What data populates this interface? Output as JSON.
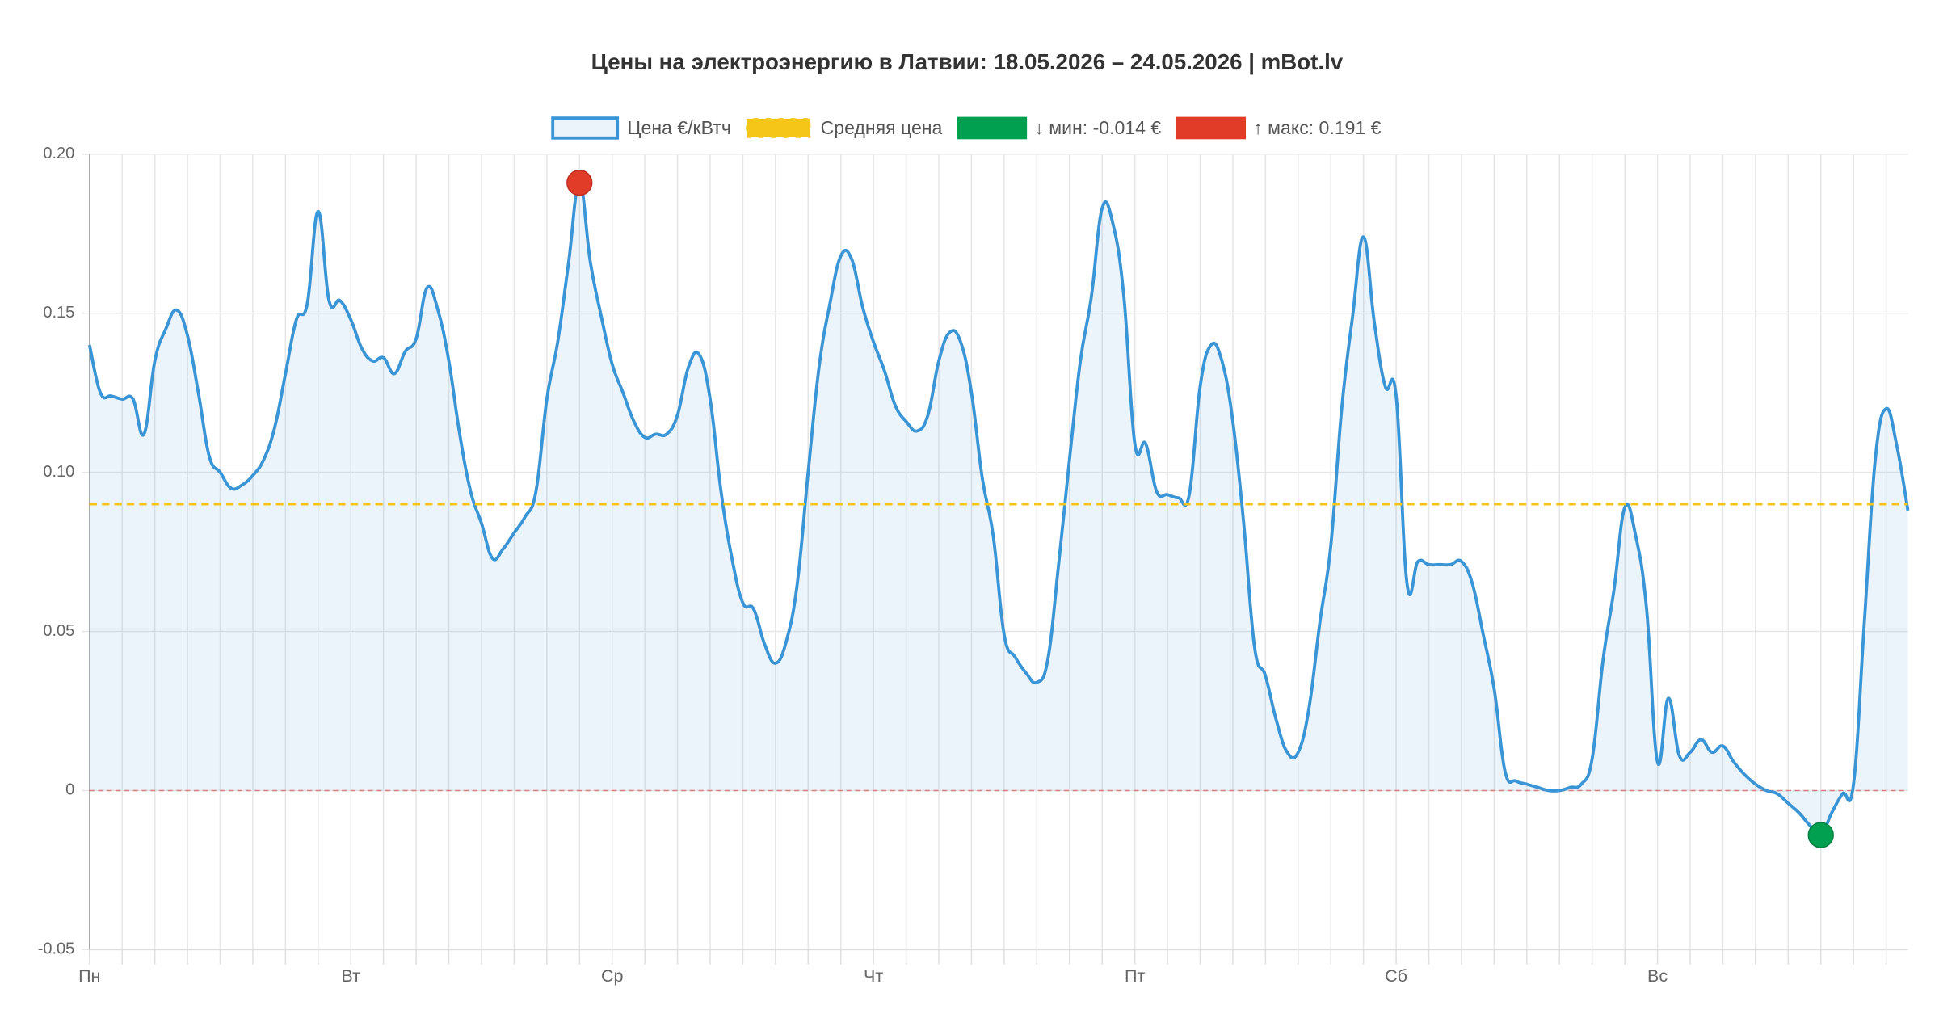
{
  "chart_data": {
    "type": "line",
    "title": "Цены на электроэнергию в Латвии: 18.05.2026 – 24.05.2026 | mBot.lv",
    "categories": [
      "Пн",
      null,
      null,
      null,
      null,
      null,
      null,
      null,
      null,
      null,
      null,
      null,
      null,
      null,
      null,
      null,
      null,
      null,
      null,
      null,
      null,
      null,
      null,
      null,
      "Вт",
      null,
      null,
      null,
      null,
      null,
      null,
      null,
      null,
      null,
      null,
      null,
      null,
      null,
      null,
      null,
      null,
      null,
      null,
      null,
      null,
      null,
      null,
      null,
      "Ср",
      null,
      null,
      null,
      null,
      null,
      null,
      null,
      null,
      null,
      null,
      null,
      null,
      null,
      null,
      null,
      null,
      null,
      null,
      null,
      null,
      null,
      null,
      null,
      "Чт",
      null,
      null,
      null,
      null,
      null,
      null,
      null,
      null,
      null,
      null,
      null,
      null,
      null,
      null,
      null,
      null,
      null,
      null,
      null,
      null,
      null,
      null,
      null,
      "Пт",
      null,
      null,
      null,
      null,
      null,
      null,
      null,
      null,
      null,
      null,
      null,
      null,
      null,
      null,
      null,
      null,
      null,
      null,
      null,
      null,
      null,
      null,
      null,
      "Сб",
      null,
      null,
      null,
      null,
      null,
      null,
      null,
      null,
      null,
      null,
      null,
      null,
      null,
      null,
      null,
      null,
      null,
      null,
      null,
      null,
      null,
      null,
      null,
      "Вс",
      null,
      null,
      null,
      null,
      null,
      null,
      null,
      null,
      null,
      null,
      null,
      null,
      null,
      null,
      null,
      null,
      null,
      null,
      null,
      null,
      null,
      null,
      null
    ],
    "series": [
      {
        "name": "Цена €/кВтч",
        "color": "#3a95d6",
        "values": [
          0.14,
          0.125,
          0.124,
          0.123,
          0.123,
          0.112,
          0.135,
          0.145,
          0.151,
          0.143,
          0.125,
          0.105,
          0.1,
          0.095,
          0.096,
          0.099,
          0.104,
          0.114,
          0.131,
          0.148,
          0.153,
          0.182,
          0.154,
          0.154,
          0.148,
          0.139,
          0.135,
          0.136,
          0.131,
          0.138,
          0.142,
          0.158,
          0.151,
          0.135,
          0.112,
          0.094,
          0.084,
          0.073,
          0.076,
          0.081,
          0.086,
          0.094,
          0.123,
          0.141,
          0.166,
          0.191,
          0.166,
          0.149,
          0.134,
          0.125,
          0.116,
          0.111,
          0.112,
          0.112,
          0.118,
          0.133,
          0.137,
          0.123,
          0.094,
          0.073,
          0.059,
          0.057,
          0.046,
          0.04,
          0.047,
          0.065,
          0.1,
          0.133,
          0.153,
          0.168,
          0.167,
          0.152,
          0.141,
          0.132,
          0.121,
          0.116,
          0.113,
          0.118,
          0.135,
          0.144,
          0.141,
          0.125,
          0.098,
          0.08,
          0.049,
          0.042,
          0.037,
          0.034,
          0.041,
          0.071,
          0.104,
          0.135,
          0.155,
          0.183,
          0.178,
          0.155,
          0.109,
          0.109,
          0.094,
          0.093,
          0.092,
          0.093,
          0.127,
          0.14,
          0.135,
          0.116,
          0.084,
          0.045,
          0.036,
          0.022,
          0.012,
          0.012,
          0.026,
          0.053,
          0.077,
          0.12,
          0.149,
          0.174,
          0.147,
          0.127,
          0.124,
          0.065,
          0.072,
          0.071,
          0.071,
          0.071,
          0.072,
          0.065,
          0.049,
          0.032,
          0.006,
          0.003,
          0.002,
          0.001,
          0.0,
          0.0,
          0.001,
          0.002,
          0.01,
          0.041,
          0.063,
          0.089,
          0.08,
          0.057,
          0.009,
          0.029,
          0.011,
          0.012,
          0.016,
          0.012,
          0.014,
          0.009,
          0.005,
          0.002,
          0.0,
          -0.001,
          -0.004,
          -0.007,
          -0.011,
          -0.014,
          -0.007,
          -0.001,
          0.002,
          0.053,
          0.104,
          0.12,
          0.108,
          0.088
        ]
      }
    ],
    "average": {
      "name": "Средняя цена",
      "color": "#f5c518",
      "value": 0.09
    },
    "min_label": {
      "name": "↓ мин: -0.014 €",
      "color": "#00a050"
    },
    "max_label": {
      "name": "↑ макс: 0.191 €",
      "color": "#e03c28"
    },
    "ylim": [
      -0.05,
      0.2
    ],
    "yticks": [
      -0.05,
      0,
      0.05,
      {
        "value": 0.1,
        "label": "0.10"
      },
      0.15,
      {
        "value": 0.2,
        "label": "0.20"
      }
    ],
    "grid": true
  }
}
